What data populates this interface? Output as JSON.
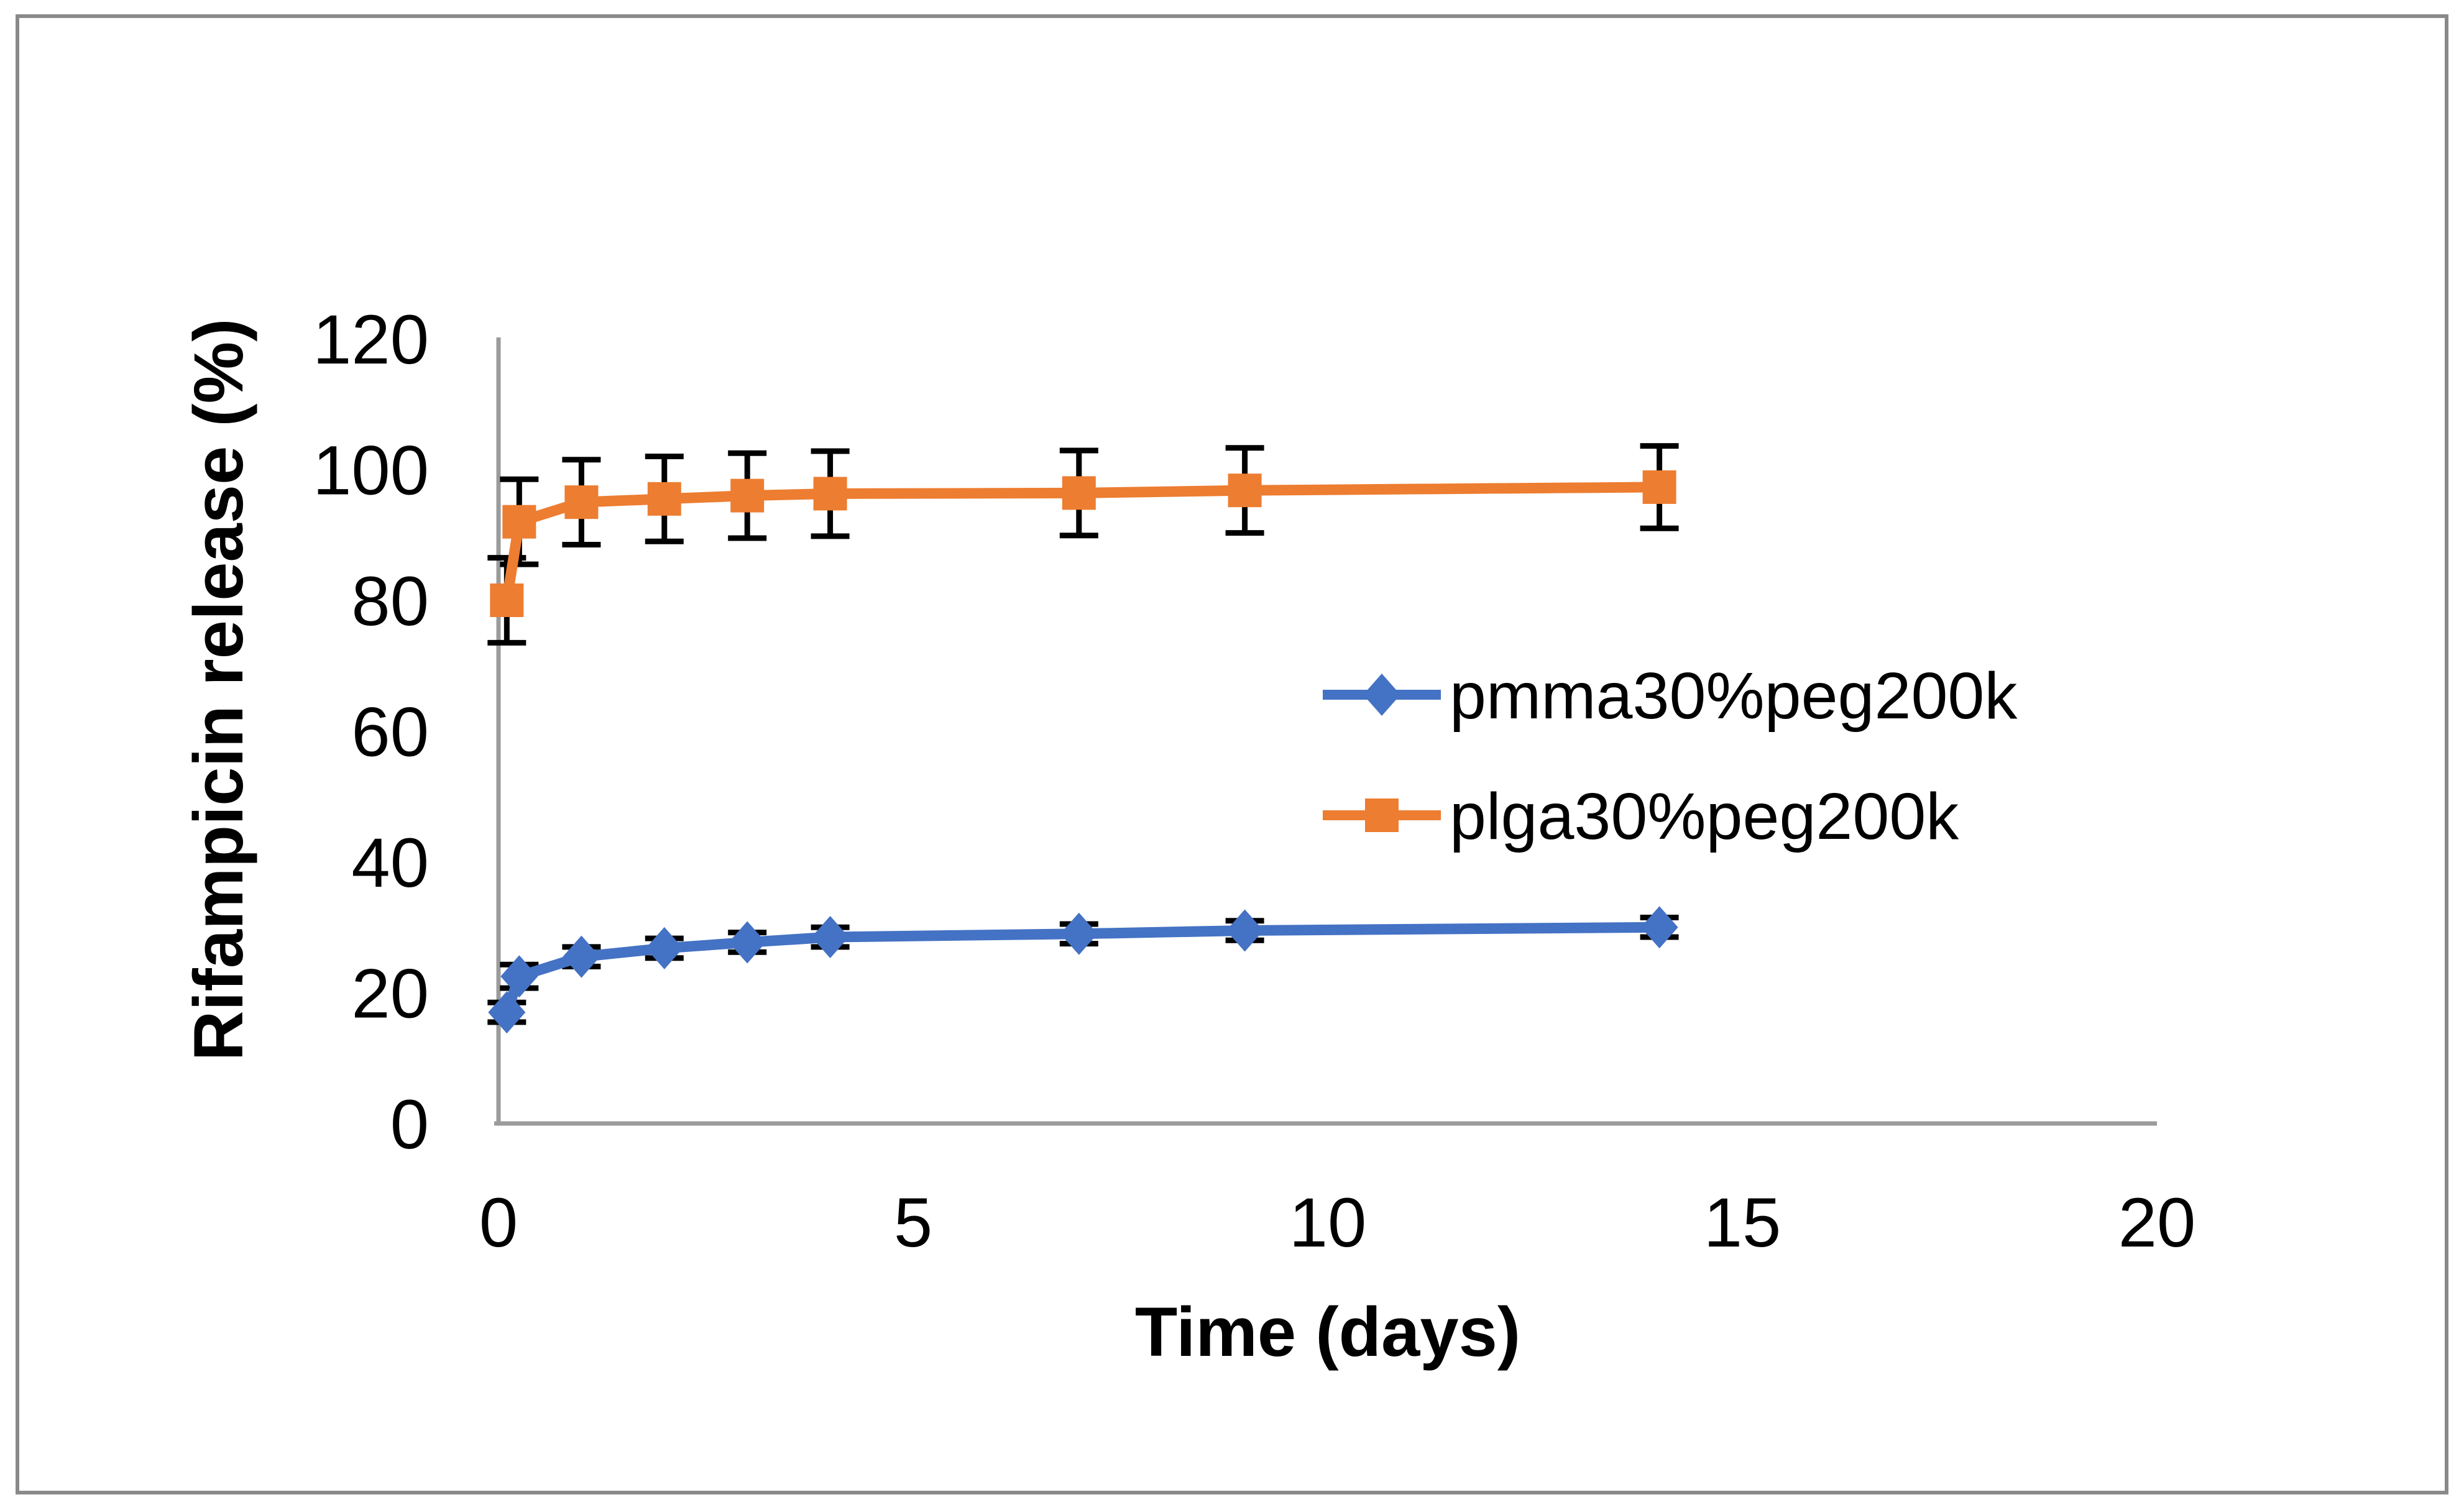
{
  "chart_data": {
    "type": "line",
    "title": "",
    "xlabel": "Time (days)",
    "ylabel": "Rifampicin release (%)",
    "xlim": [
      0,
      20
    ],
    "ylim": [
      0,
      120
    ],
    "x_ticks": [
      0,
      5,
      10,
      15,
      20
    ],
    "y_ticks": [
      0,
      20,
      40,
      60,
      80,
      100,
      120
    ],
    "grid": false,
    "legend_position": "center-right",
    "error_bars": true,
    "x": [
      0.1,
      0.25,
      1,
      2,
      3,
      4,
      7,
      9,
      14
    ],
    "series": [
      {
        "name": "pmma30%peg200k",
        "color": "#4472C4",
        "marker": "diamond",
        "values": [
          17,
          22.5,
          25.5,
          26.8,
          27.7,
          28.5,
          29,
          29.5,
          30
        ],
        "yerr": [
          1.5,
          1.8,
          1.5,
          1.5,
          1.5,
          1.5,
          1.5,
          1.5,
          1.5
        ]
      },
      {
        "name": "plga30%peg200k",
        "color": "#ED7D31",
        "marker": "square",
        "values": [
          80,
          92,
          95,
          95.5,
          96,
          96.3,
          96.4,
          96.8,
          97.3
        ],
        "yerr": [
          6.5,
          6.5,
          6.5,
          6.5,
          6.5,
          6.5,
          6.5,
          6.5,
          6.3
        ]
      }
    ],
    "colors": {
      "series_blue": "#4472C4",
      "series_orange": "#ED7D31",
      "error_bar": "#000000",
      "axis_line": "#9B9B9B",
      "figure_border": "#8A8A8A",
      "background": "#FFFFFF"
    }
  }
}
